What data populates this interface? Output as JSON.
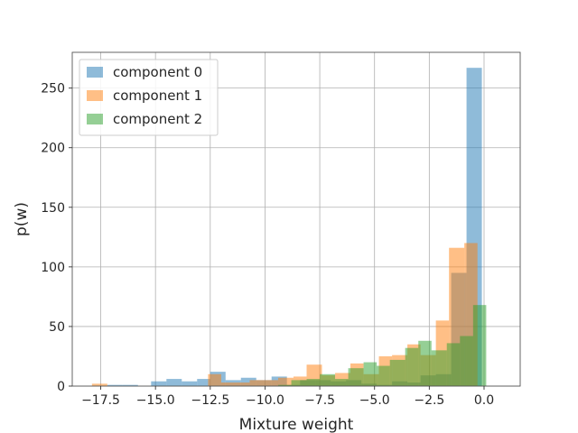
{
  "chart_data": {
    "type": "bar",
    "title": "",
    "xlabel": "Mixture weight",
    "ylabel": "p(w)",
    "xlim": [
      -18.8,
      1.65
    ],
    "ylim": [
      0,
      280
    ],
    "xticks": [
      -17.5,
      -15.0,
      -12.5,
      -10.0,
      -7.5,
      -5.0,
      -2.5,
      0.0
    ],
    "xtick_labels": [
      "−17.5",
      "−15.0",
      "−12.5",
      "−10.0",
      "−7.5",
      "−5.0",
      "−2.5",
      "0.0"
    ],
    "yticks": [
      0,
      50,
      100,
      150,
      200,
      250
    ],
    "ytick_labels": [
      "0",
      "50",
      "100",
      "150",
      "200",
      "250"
    ],
    "grid": true,
    "legend_position": "top-left",
    "series": [
      {
        "name": "component 0",
        "color": "#1f77b4",
        "bins": [
          [
            -17.2,
            -16.5,
            1
          ],
          [
            -16.5,
            -15.8,
            1
          ],
          [
            -15.2,
            -14.5,
            4
          ],
          [
            -14.5,
            -13.8,
            6
          ],
          [
            -13.8,
            -13.1,
            4
          ],
          [
            -13.1,
            -12.5,
            6
          ],
          [
            -12.5,
            -11.8,
            12
          ],
          [
            -11.8,
            -11.1,
            5
          ],
          [
            -11.1,
            -10.4,
            7
          ],
          [
            -10.4,
            -9.7,
            5
          ],
          [
            -9.7,
            -9.0,
            8
          ],
          [
            -9.0,
            -8.4,
            1
          ],
          [
            -8.4,
            -7.7,
            5
          ],
          [
            -7.7,
            -7.0,
            5
          ],
          [
            -7.0,
            -6.3,
            4
          ],
          [
            -6.3,
            -5.6,
            5
          ],
          [
            -5.6,
            -4.9,
            2
          ],
          [
            -4.9,
            -4.2,
            1
          ],
          [
            -4.2,
            -3.5,
            4
          ],
          [
            -3.5,
            -2.9,
            3
          ],
          [
            -2.9,
            -2.2,
            9
          ],
          [
            -2.2,
            -1.5,
            10
          ],
          [
            -1.5,
            -0.8,
            95
          ],
          [
            -0.8,
            -0.1,
            267
          ]
        ]
      },
      {
        "name": "component 1",
        "color": "#ff7f0e",
        "bins": [
          [
            -17.9,
            -17.2,
            2
          ],
          [
            -12.6,
            -12.0,
            10
          ],
          [
            -12.0,
            -11.3,
            3
          ],
          [
            -11.3,
            -10.7,
            3
          ],
          [
            -10.7,
            -10.0,
            5
          ],
          [
            -10.0,
            -9.4,
            5
          ],
          [
            -9.4,
            -8.7,
            7
          ],
          [
            -8.7,
            -8.1,
            8
          ],
          [
            -8.1,
            -7.4,
            18
          ],
          [
            -7.4,
            -6.8,
            9
          ],
          [
            -6.8,
            -6.1,
            11
          ],
          [
            -6.1,
            -5.5,
            19
          ],
          [
            -5.5,
            -4.8,
            10
          ],
          [
            -4.8,
            -4.2,
            25
          ],
          [
            -4.2,
            -3.5,
            26
          ],
          [
            -3.5,
            -2.9,
            35
          ],
          [
            -2.9,
            -2.2,
            26
          ],
          [
            -2.2,
            -1.6,
            55
          ],
          [
            -1.6,
            -0.9,
            116
          ],
          [
            -0.9,
            -0.3,
            120
          ]
        ]
      },
      {
        "name": "component 2",
        "color": "#2ca02c",
        "bins": [
          [
            -9.4,
            -8.8,
            1
          ],
          [
            -8.8,
            -8.1,
            5
          ],
          [
            -8.1,
            -7.5,
            6
          ],
          [
            -7.5,
            -6.8,
            10
          ],
          [
            -6.8,
            -6.2,
            6
          ],
          [
            -6.2,
            -5.5,
            15
          ],
          [
            -5.5,
            -4.9,
            20
          ],
          [
            -4.9,
            -4.3,
            17
          ],
          [
            -4.3,
            -3.6,
            22
          ],
          [
            -3.6,
            -3.0,
            32
          ],
          [
            -3.0,
            -2.4,
            38
          ],
          [
            -2.4,
            -1.7,
            30
          ],
          [
            -1.7,
            -1.1,
            36
          ],
          [
            -1.1,
            -0.5,
            42
          ],
          [
            -0.5,
            0.1,
            68
          ]
        ]
      }
    ]
  }
}
